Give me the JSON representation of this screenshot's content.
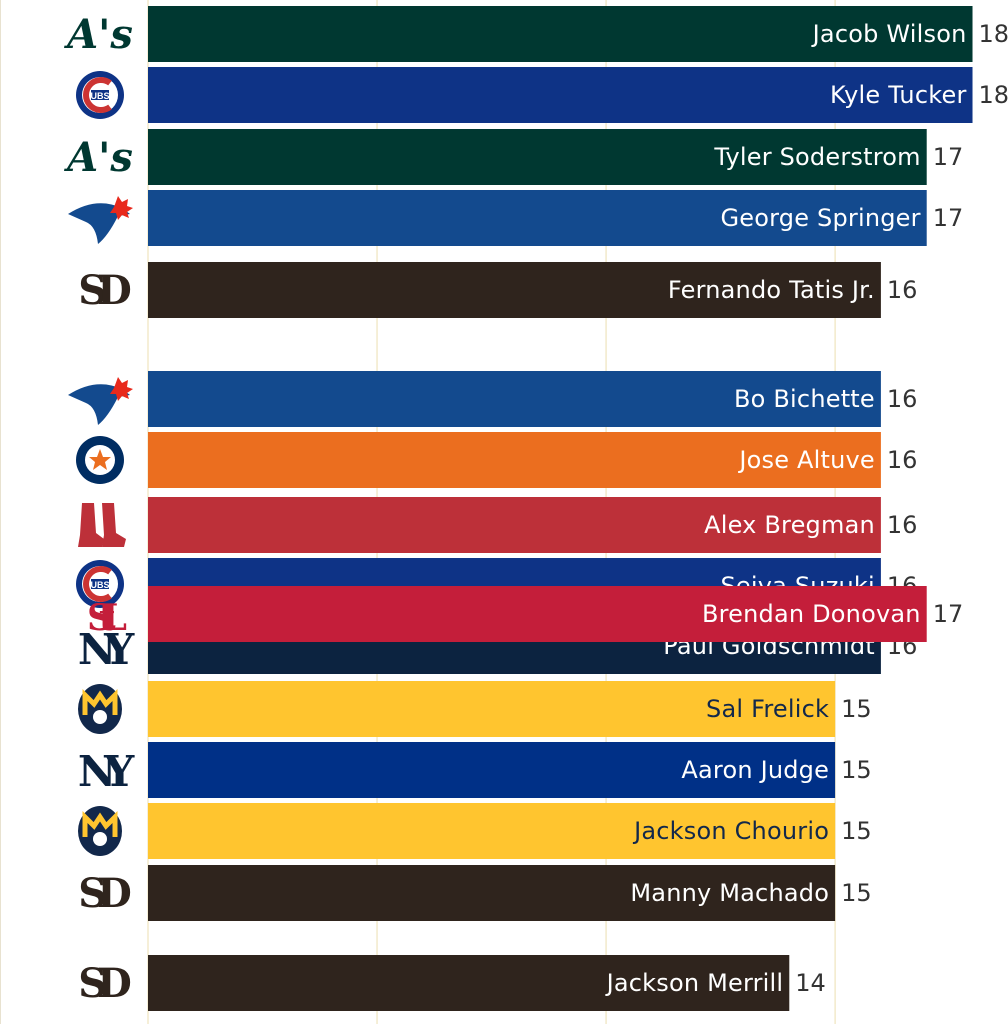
{
  "chart_data": {
    "type": "bar",
    "orientation": "horizontal",
    "title": "",
    "xlabel": "",
    "ylabel": "",
    "xlim": [
      0,
      18.6
    ],
    "grid": true,
    "gridlines_at": [
      0,
      5,
      10,
      15
    ],
    "rows": [
      {
        "name": "Jacob Wilson",
        "value": 18,
        "team": "athletics",
        "color": "#003831",
        "text_color": "#ffffff"
      },
      {
        "name": "Kyle Tucker",
        "value": 18,
        "team": "cubs",
        "color": "#0e3386",
        "text_color": "#ffffff"
      },
      {
        "name": "Tyler Soderstrom",
        "value": 17,
        "team": "athletics",
        "color": "#003831",
        "text_color": "#ffffff"
      },
      {
        "name": "George Springer",
        "value": 17,
        "team": "blue-jays",
        "color": "#134a8e",
        "text_color": "#ffffff"
      },
      {
        "name": "Fernando Tatis Jr.",
        "value": 16,
        "team": "padres",
        "color": "#2f241d",
        "text_color": "#ffffff"
      },
      {
        "name": "Bo Bichette",
        "value": 16,
        "team": "blue-jays",
        "color": "#134a8e",
        "text_color": "#ffffff"
      },
      {
        "name": "Jose Altuve",
        "value": 16,
        "team": "astros",
        "color": "#eb6e1f",
        "text_color": "#ffffff"
      },
      {
        "name": "Alex Bregman",
        "value": 16,
        "team": "red-sox",
        "color": "#bd3039",
        "text_color": "#ffffff"
      },
      {
        "name": "Seiya Suzuki",
        "value": 16,
        "team": "cubs",
        "color": "#0e3386",
        "text_color": "#ffffff"
      },
      {
        "name": "Paul Goldschmidt",
        "value": 16,
        "team": "yankees",
        "color": "#0c2340",
        "text_color": "#ffffff"
      },
      {
        "name": "Brendan Donovan",
        "value": 17,
        "team": "cardinals",
        "color": "#c41e3a",
        "text_color": "#ffffff"
      },
      {
        "name": "Sal Frelick",
        "value": 15,
        "team": "brewers",
        "color": "#ffc52f",
        "text_color": "#12284b"
      },
      {
        "name": "Aaron Judge",
        "value": 15,
        "team": "yankees",
        "color": "#003087",
        "text_color": "#ffffff"
      },
      {
        "name": "Jackson Chourio",
        "value": 15,
        "team": "brewers",
        "color": "#ffc52f",
        "text_color": "#12284b"
      },
      {
        "name": "Manny Machado",
        "value": 15,
        "team": "padres",
        "color": "#2f241d",
        "text_color": "#ffffff"
      },
      {
        "name": "Jackson Merrill",
        "value": 14,
        "team": "padres",
        "color": "#2f241d",
        "text_color": "#ffffff"
      }
    ]
  },
  "logos": {
    "athletics": {
      "text": "A's",
      "fg": "#003831",
      "bg": "#ffffff"
    },
    "cubs": {
      "text": "UBS",
      "fg": "#ffffff",
      "bg": "#0e3386",
      "ring": "#cc3433"
    },
    "blue-jays": {
      "fg": "#134a8e",
      "accent": "#e8291c"
    },
    "padres": {
      "text": "SD",
      "fg": "#2f241d"
    },
    "astros": {
      "fg": "#002d62",
      "accent": "#eb6e1f"
    },
    "red-sox": {
      "fg": "#bd3039"
    },
    "yankees": {
      "text": "NY",
      "fg": "#0c2340"
    },
    "cardinals": {
      "text": "StL",
      "fg": "#c41e3a"
    },
    "brewers": {
      "text": "mb",
      "fg": "#ffc52f",
      "bg": "#12284b"
    }
  }
}
